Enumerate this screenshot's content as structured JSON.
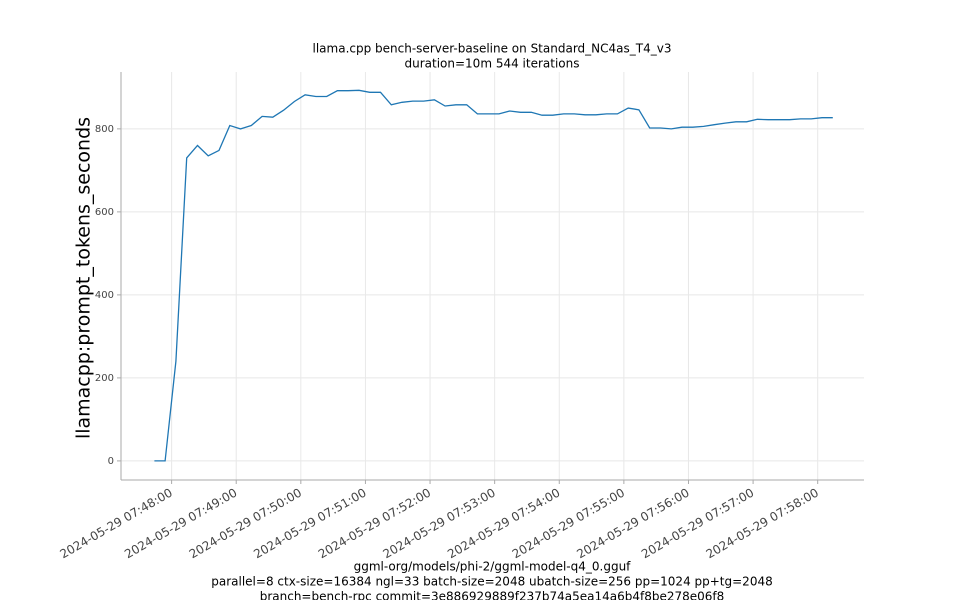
{
  "chart_data": {
    "type": "line",
    "title": "llama.cpp bench-server-baseline on Standard_NC4as_T4_v3",
    "subtitle": "duration=10m 544 iterations",
    "y_label": "llamacpp:prompt_tokens_seconds",
    "x_label": [
      "ggml-org/models/phi-2/ggml-model-q4_0.gguf",
      "parallel=8 ctx-size=16384 ngl=33 batch-size=2048 ubatch-size=256 pp=1024 pp+tg=2048",
      "branch=bench-rpc commit=3e886929889f237b74a5ea14a6b4f8be278e06f8"
    ],
    "x": [
      "2024-05-29 07:47:44",
      "2024-05-29 07:47:54",
      "2024-05-29 07:48:04",
      "2024-05-29 07:48:14",
      "2024-05-29 07:48:24",
      "2024-05-29 07:48:34",
      "2024-05-29 07:48:44",
      "2024-05-29 07:48:54",
      "2024-05-29 07:49:04",
      "2024-05-29 07:49:14",
      "2024-05-29 07:49:24",
      "2024-05-29 07:49:34",
      "2024-05-29 07:49:44",
      "2024-05-29 07:49:54",
      "2024-05-29 07:50:04",
      "2024-05-29 07:50:14",
      "2024-05-29 07:50:24",
      "2024-05-29 07:50:34",
      "2024-05-29 07:50:44",
      "2024-05-29 07:50:54",
      "2024-05-29 07:51:04",
      "2024-05-29 07:51:14",
      "2024-05-29 07:51:24",
      "2024-05-29 07:51:34",
      "2024-05-29 07:51:44",
      "2024-05-29 07:51:54",
      "2024-05-29 07:52:04",
      "2024-05-29 07:52:14",
      "2024-05-29 07:52:24",
      "2024-05-29 07:52:34",
      "2024-05-29 07:52:44",
      "2024-05-29 07:52:54",
      "2024-05-29 07:53:04",
      "2024-05-29 07:53:14",
      "2024-05-29 07:53:24",
      "2024-05-29 07:53:34",
      "2024-05-29 07:53:44",
      "2024-05-29 07:53:54",
      "2024-05-29 07:54:04",
      "2024-05-29 07:54:14",
      "2024-05-29 07:54:24",
      "2024-05-29 07:54:34",
      "2024-05-29 07:54:44",
      "2024-05-29 07:54:54",
      "2024-05-29 07:55:04",
      "2024-05-29 07:55:14",
      "2024-05-29 07:55:24",
      "2024-05-29 07:55:34",
      "2024-05-29 07:55:44",
      "2024-05-29 07:55:54",
      "2024-05-29 07:56:04",
      "2024-05-29 07:56:14",
      "2024-05-29 07:56:24",
      "2024-05-29 07:56:34",
      "2024-05-29 07:56:44",
      "2024-05-29 07:56:54",
      "2024-05-29 07:57:04",
      "2024-05-29 07:57:14",
      "2024-05-29 07:57:24",
      "2024-05-29 07:57:34",
      "2024-05-29 07:57:44",
      "2024-05-29 07:57:54",
      "2024-05-29 07:58:04",
      "2024-05-29 07:58:14"
    ],
    "series": [
      {
        "color": "#1f77b4",
        "values": [
          0,
          0,
          240,
          730,
          760,
          735,
          748,
          808,
          800,
          808,
          830,
          828,
          845,
          866,
          882,
          878,
          878,
          892,
          892,
          893,
          888,
          888,
          858,
          864,
          867,
          867,
          870,
          855,
          858,
          858,
          836,
          836,
          836,
          843,
          840,
          840,
          833,
          833,
          836,
          836,
          834,
          834,
          836,
          836,
          850,
          846,
          802,
          802,
          800,
          804,
          804,
          806,
          810,
          814,
          817,
          817,
          823,
          822,
          822,
          822,
          824,
          824,
          827,
          827
        ]
      }
    ],
    "xlim": [
      "2024-05-29 07:47:13",
      "2024-05-29 07:58:43"
    ],
    "xticks": [
      "2024-05-29 07:48:00",
      "2024-05-29 07:49:00",
      "2024-05-29 07:50:00",
      "2024-05-29 07:51:00",
      "2024-05-29 07:52:00",
      "2024-05-29 07:53:00",
      "2024-05-29 07:54:00",
      "2024-05-29 07:55:00",
      "2024-05-29 07:56:00",
      "2024-05-29 07:57:00",
      "2024-05-29 07:58:00"
    ],
    "ylim": [
      -46,
      937
    ],
    "yticks": [
      0,
      200,
      400,
      600,
      800
    ],
    "grid": true
  }
}
